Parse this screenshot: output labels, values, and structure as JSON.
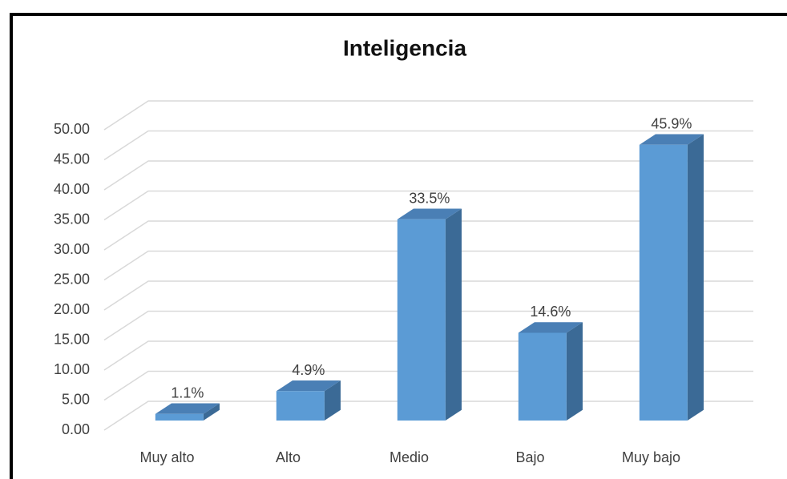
{
  "chart_data": {
    "type": "bar3d",
    "title": "Inteligencia",
    "categories": [
      "Muy alto",
      "Alto",
      "Medio",
      "Bajo",
      "Muy bajo"
    ],
    "values": [
      1.1,
      4.9,
      33.5,
      14.6,
      45.9
    ],
    "value_labels": [
      "1.1%",
      "4.9%",
      "33.5%",
      "14.6%",
      "45.9%"
    ],
    "color": "#5b9bd5",
    "ylim": [
      0,
      50
    ],
    "yticks": [
      {
        "value": 0,
        "label": "0.00"
      },
      {
        "value": 5,
        "label": "5.00"
      },
      {
        "value": 10,
        "label": "10.00"
      },
      {
        "value": 15,
        "label": "15.00"
      },
      {
        "value": 20,
        "label": "20.00"
      },
      {
        "value": 25,
        "label": "25.00"
      },
      {
        "value": 30,
        "label": "30.00"
      },
      {
        "value": 35,
        "label": "35.00"
      },
      {
        "value": 40,
        "label": "40.00"
      },
      {
        "value": 45,
        "label": "45.00"
      },
      {
        "value": 50,
        "label": "50.00"
      }
    ],
    "grid": true
  }
}
